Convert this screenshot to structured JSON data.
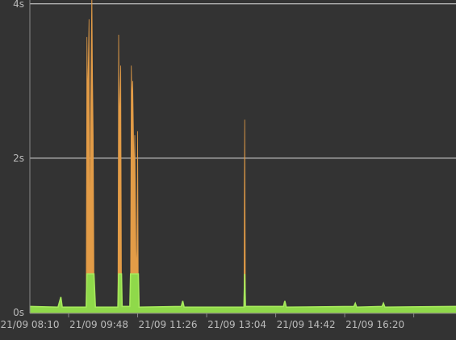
{
  "chart_data": {
    "type": "area",
    "colors": {
      "background": "#333333",
      "grid": "#dddddd",
      "axis": "#888888",
      "tick_text": "#bbbbbb",
      "series_upper": "#e39c47",
      "series_lower": "#8fd94a"
    },
    "y_unit": "s",
    "ylim": [
      0,
      4.05
    ],
    "y_ticks": [
      {
        "value": 0,
        "label": "0s"
      },
      {
        "value": 2,
        "label": "2s"
      },
      {
        "value": 4,
        "label": "4s"
      }
    ],
    "x_range_minutes": [
      0,
      605
    ],
    "x_ticks": [
      {
        "t": 0,
        "label": "21/09 08:10"
      },
      {
        "t": 98,
        "label": "21/09 09:48"
      },
      {
        "t": 196,
        "label": "21/09 11:26"
      },
      {
        "t": 294,
        "label": "21/09 13:04"
      },
      {
        "t": 392,
        "label": "21/09 14:42"
      },
      {
        "t": 490,
        "label": "21/09 16:20"
      }
    ],
    "grid": "horizontal",
    "series": [
      {
        "role": "total",
        "points": [
          [
            0,
            0.08
          ],
          [
            40,
            0.07
          ],
          [
            44,
            0.2
          ],
          [
            46,
            0.07
          ],
          [
            80,
            0.07
          ],
          [
            81,
            3.57
          ],
          [
            82,
            2.7
          ],
          [
            84,
            3.8
          ],
          [
            85,
            0.5
          ],
          [
            86,
            2.4
          ],
          [
            88,
            4.2
          ],
          [
            89,
            3.0
          ],
          [
            90,
            2.3
          ],
          [
            91,
            0.5
          ],
          [
            93,
            0.07
          ],
          [
            125,
            0.07
          ],
          [
            126,
            3.6
          ],
          [
            127,
            2.4
          ],
          [
            128,
            2.8
          ],
          [
            129,
            3.2
          ],
          [
            130,
            0.5
          ],
          [
            131,
            0.08
          ],
          [
            142,
            0.08
          ],
          [
            143,
            0.5
          ],
          [
            144,
            3.2
          ],
          [
            145,
            2.7
          ],
          [
            146,
            3.0
          ],
          [
            147,
            2.4
          ],
          [
            148,
            1.7
          ],
          [
            149,
            2.3
          ],
          [
            151,
            0.5
          ],
          [
            152,
            0.8
          ],
          [
            153,
            2.35
          ],
          [
            154,
            0.2
          ],
          [
            155,
            0.07
          ],
          [
            215,
            0.08
          ],
          [
            217,
            0.15
          ],
          [
            219,
            0.07
          ],
          [
            304,
            0.07
          ],
          [
            305,
            2.5
          ],
          [
            306,
            0.08
          ],
          [
            360,
            0.08
          ],
          [
            362,
            0.15
          ],
          [
            364,
            0.07
          ],
          [
            460,
            0.08
          ],
          [
            462,
            0.12
          ],
          [
            464,
            0.07
          ],
          [
            500,
            0.08
          ],
          [
            502,
            0.12
          ],
          [
            504,
            0.07
          ],
          [
            605,
            0.08
          ]
        ]
      },
      {
        "role": "base",
        "points": [
          [
            0,
            0.08
          ],
          [
            40,
            0.07
          ],
          [
            44,
            0.2
          ],
          [
            46,
            0.07
          ],
          [
            80,
            0.07
          ],
          [
            81,
            0.5
          ],
          [
            91,
            0.5
          ],
          [
            93,
            0.07
          ],
          [
            125,
            0.07
          ],
          [
            126,
            0.5
          ],
          [
            130,
            0.5
          ],
          [
            131,
            0.08
          ],
          [
            142,
            0.08
          ],
          [
            143,
            0.5
          ],
          [
            154,
            0.5
          ],
          [
            155,
            0.07
          ],
          [
            215,
            0.08
          ],
          [
            217,
            0.15
          ],
          [
            219,
            0.07
          ],
          [
            304,
            0.07
          ],
          [
            305,
            0.5
          ],
          [
            306,
            0.08
          ],
          [
            360,
            0.08
          ],
          [
            362,
            0.15
          ],
          [
            364,
            0.07
          ],
          [
            460,
            0.08
          ],
          [
            462,
            0.12
          ],
          [
            464,
            0.07
          ],
          [
            500,
            0.08
          ],
          [
            502,
            0.12
          ],
          [
            504,
            0.07
          ],
          [
            605,
            0.08
          ]
        ]
      }
    ]
  }
}
